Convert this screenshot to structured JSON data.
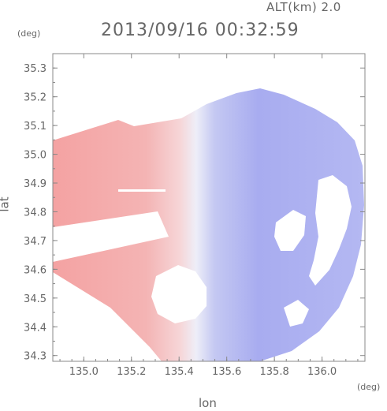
{
  "header": {
    "alt_label": "ALT(km) 2.0",
    "datetime": "2013/09/16 00:32:59"
  },
  "chart_data": {
    "type": "heatmap",
    "xlabel": "lon",
    "ylabel": "lat",
    "x_unit": "(deg)",
    "y_unit": "(deg)",
    "xlim": [
      134.87,
      136.18
    ],
    "ylim": [
      34.28,
      35.35
    ],
    "x_ticks": [
      135.0,
      135.2,
      135.4,
      135.6,
      135.8,
      136.0
    ],
    "x_tick_labels": [
      "135.0",
      "135.2",
      "135.4",
      "135.6",
      "135.8",
      "136.0"
    ],
    "y_ticks": [
      34.3,
      34.4,
      34.5,
      34.6,
      34.7,
      34.8,
      34.9,
      35.0,
      35.1,
      35.2,
      35.3
    ],
    "y_tick_labels": [
      "34.3",
      "34.4",
      "34.5",
      "34.6",
      "34.7",
      "34.8",
      "34.9",
      "35.0",
      "35.1",
      "35.2",
      "35.3"
    ],
    "radar_center": [
      135.52,
      34.8
    ],
    "radar_radius_deg": 0.56,
    "colors": {
      "positive": "#f2a0a0",
      "negative": "#9aa0f0",
      "neutral": "#f4f4fa"
    },
    "grid": false
  }
}
